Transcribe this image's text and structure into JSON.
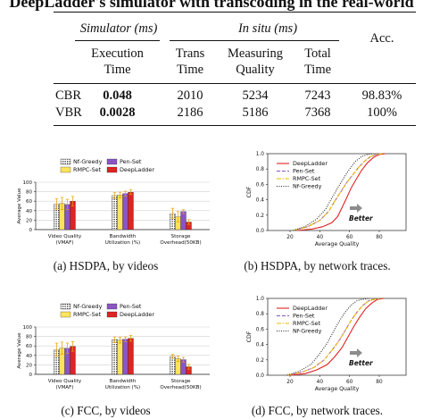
{
  "title": "DeepLadder's simulator with transcoding in the real-world",
  "table": {
    "group_simulator": "Simulator (ms)",
    "group_insitu": "In situ (ms)",
    "col_acc": "Acc.",
    "col_exec_l1": "Execution",
    "col_exec_l2": "Time",
    "col_trans_l1": "Trans",
    "col_trans_l2": "Time",
    "col_meas_l1": "Measuring",
    "col_meas_l2": "Quality",
    "col_total_l1": "Total",
    "col_total_l2": "Time",
    "rows": [
      {
        "label": "CBR",
        "exec": "0.048",
        "trans": "2010",
        "meas": "5234",
        "total": "7243",
        "acc": "98.83%"
      },
      {
        "label": "VBR",
        "exec": "0.0028",
        "trans": "2186",
        "meas": "5186",
        "total": "7368",
        "acc": "100%"
      }
    ]
  },
  "captions": {
    "a": "(a)  HSDPA, by videos",
    "b": "(b)  HSDPA, by network traces.",
    "c": "(c)  FCC, by videos",
    "d": "(d)  FCC, by network traces."
  },
  "colors": {
    "nf_greedy": "#2a2a2a",
    "rmpc_set": "#ffe35a",
    "pen_set": "#8a55c4",
    "deepladder": "#e02323"
  },
  "chart_data": [
    {
      "type": "bar",
      "ylabel": "Average Value",
      "ylim": [
        0,
        100
      ],
      "yticks": [
        0,
        20,
        40,
        60,
        80,
        100
      ],
      "categories": [
        "Video Quality\n(VMAF)",
        "Bandwidth\nUtilization (%)",
        "Storage\nOverhead(50KB)"
      ],
      "legend": [
        "Nf-Greedy",
        "Pen-Set",
        "RMPC-Set",
        "DeepLadder"
      ],
      "series": [
        {
          "name": "Nf-Greedy",
          "values": [
            54,
            72,
            34
          ],
          "err": [
            11,
            6,
            11
          ]
        },
        {
          "name": "RMPC-Set",
          "values": [
            55,
            73,
            27
          ],
          "err": [
            13,
            6,
            11
          ]
        },
        {
          "name": "Pen-Set",
          "values": [
            53,
            76,
            38
          ],
          "err": [
            11,
            5,
            4
          ]
        },
        {
          "name": "DeepLadder",
          "values": [
            60,
            79,
            16
          ],
          "err": [
            10,
            5,
            5
          ]
        }
      ]
    },
    {
      "type": "line",
      "xlabel": "Average Quality",
      "ylabel": "CDF",
      "xlim": [
        5,
        98
      ],
      "ylim": [
        0,
        1.0
      ],
      "xticks": [
        20,
        40,
        60,
        80
      ],
      "yticks": [
        0.0,
        0.2,
        0.4,
        0.6,
        0.8,
        1.0
      ],
      "annotation": "Better",
      "series": [
        {
          "name": "DeepLadder",
          "x": [
            25,
            35,
            42,
            48,
            52,
            55,
            58,
            61,
            64,
            68,
            72,
            76,
            80,
            84
          ],
          "y": [
            0,
            0.02,
            0.05,
            0.1,
            0.18,
            0.3,
            0.42,
            0.55,
            0.65,
            0.78,
            0.88,
            0.95,
            0.99,
            1.0
          ]
        },
        {
          "name": "Pen-Set",
          "x": [
            22,
            32,
            40,
            46,
            50,
            54,
            58,
            62,
            66,
            70,
            74,
            78,
            82
          ],
          "y": [
            0,
            0.05,
            0.13,
            0.25,
            0.38,
            0.5,
            0.62,
            0.72,
            0.82,
            0.9,
            0.96,
            0.99,
            1.0
          ]
        },
        {
          "name": "RMPC-Set",
          "x": [
            22,
            32,
            40,
            46,
            50,
            54,
            58,
            62,
            66,
            70,
            74,
            78,
            82
          ],
          "y": [
            0,
            0.05,
            0.13,
            0.25,
            0.38,
            0.5,
            0.62,
            0.72,
            0.82,
            0.9,
            0.96,
            0.99,
            1.0
          ]
        },
        {
          "name": "Nf-Greedy",
          "x": [
            22,
            30,
            38,
            44,
            48,
            52,
            56,
            60,
            64,
            68,
            72,
            76
          ],
          "y": [
            0,
            0.05,
            0.15,
            0.28,
            0.42,
            0.55,
            0.68,
            0.8,
            0.9,
            0.96,
            0.99,
            1.0
          ]
        }
      ]
    },
    {
      "type": "bar",
      "ylabel": "Average Value",
      "ylim": [
        0,
        100
      ],
      "yticks": [
        0,
        20,
        40,
        60,
        80,
        100
      ],
      "categories": [
        "Video Quality\n(VMAF)",
        "Bandwidth\nUtilization (%)",
        "Storage\nOverhead(50KB)"
      ],
      "legend": [
        "Nf-Greedy",
        "Pen-Set",
        "RMPC-Set",
        "DeepLadder"
      ],
      "series": [
        {
          "name": "Nf-Greedy",
          "values": [
            52,
            73,
            38
          ],
          "err": [
            14,
            6,
            4
          ]
        },
        {
          "name": "RMPC-Set",
          "values": [
            55,
            72,
            33
          ],
          "err": [
            13,
            6,
            6
          ]
        },
        {
          "name": "Pen-Set",
          "values": [
            55,
            74,
            31
          ],
          "err": [
            11,
            5,
            5
          ]
        },
        {
          "name": "DeepLadder",
          "values": [
            59,
            76,
            16
          ],
          "err": [
            10,
            6,
            5
          ]
        }
      ]
    },
    {
      "type": "line",
      "xlabel": "Average Quality",
      "ylabel": "CDF",
      "xlim": [
        5,
        98
      ],
      "ylim": [
        0,
        1.0
      ],
      "xticks": [
        20,
        40,
        60,
        80
      ],
      "yticks": [
        0.0,
        0.2,
        0.4,
        0.6,
        0.8,
        1.0
      ],
      "annotation": "Better",
      "series": [
        {
          "name": "DeepLadder",
          "x": [
            20,
            30,
            38,
            45,
            50,
            55,
            59,
            63,
            67,
            71,
            75,
            79,
            83
          ],
          "y": [
            0,
            0.02,
            0.07,
            0.14,
            0.24,
            0.36,
            0.5,
            0.64,
            0.76,
            0.87,
            0.94,
            0.99,
            1.0
          ]
        },
        {
          "name": "Pen-Set",
          "x": [
            18,
            28,
            36,
            43,
            48,
            53,
            57,
            61,
            65,
            69,
            73,
            77,
            81
          ],
          "y": [
            0,
            0.04,
            0.1,
            0.2,
            0.32,
            0.45,
            0.58,
            0.71,
            0.82,
            0.91,
            0.97,
            0.99,
            1.0
          ]
        },
        {
          "name": "RMPC-Set",
          "x": [
            18,
            28,
            36,
            43,
            48,
            53,
            57,
            61,
            65,
            69,
            73,
            77,
            81
          ],
          "y": [
            0,
            0.04,
            0.1,
            0.2,
            0.32,
            0.45,
            0.58,
            0.71,
            0.82,
            0.91,
            0.97,
            0.99,
            1.0
          ]
        },
        {
          "name": "Nf-Greedy",
          "x": [
            18,
            26,
            34,
            40,
            45,
            49,
            53,
            57,
            61,
            65,
            69,
            73
          ],
          "y": [
            0,
            0.05,
            0.14,
            0.28,
            0.42,
            0.56,
            0.7,
            0.82,
            0.91,
            0.97,
            0.99,
            1.0
          ]
        }
      ]
    }
  ]
}
